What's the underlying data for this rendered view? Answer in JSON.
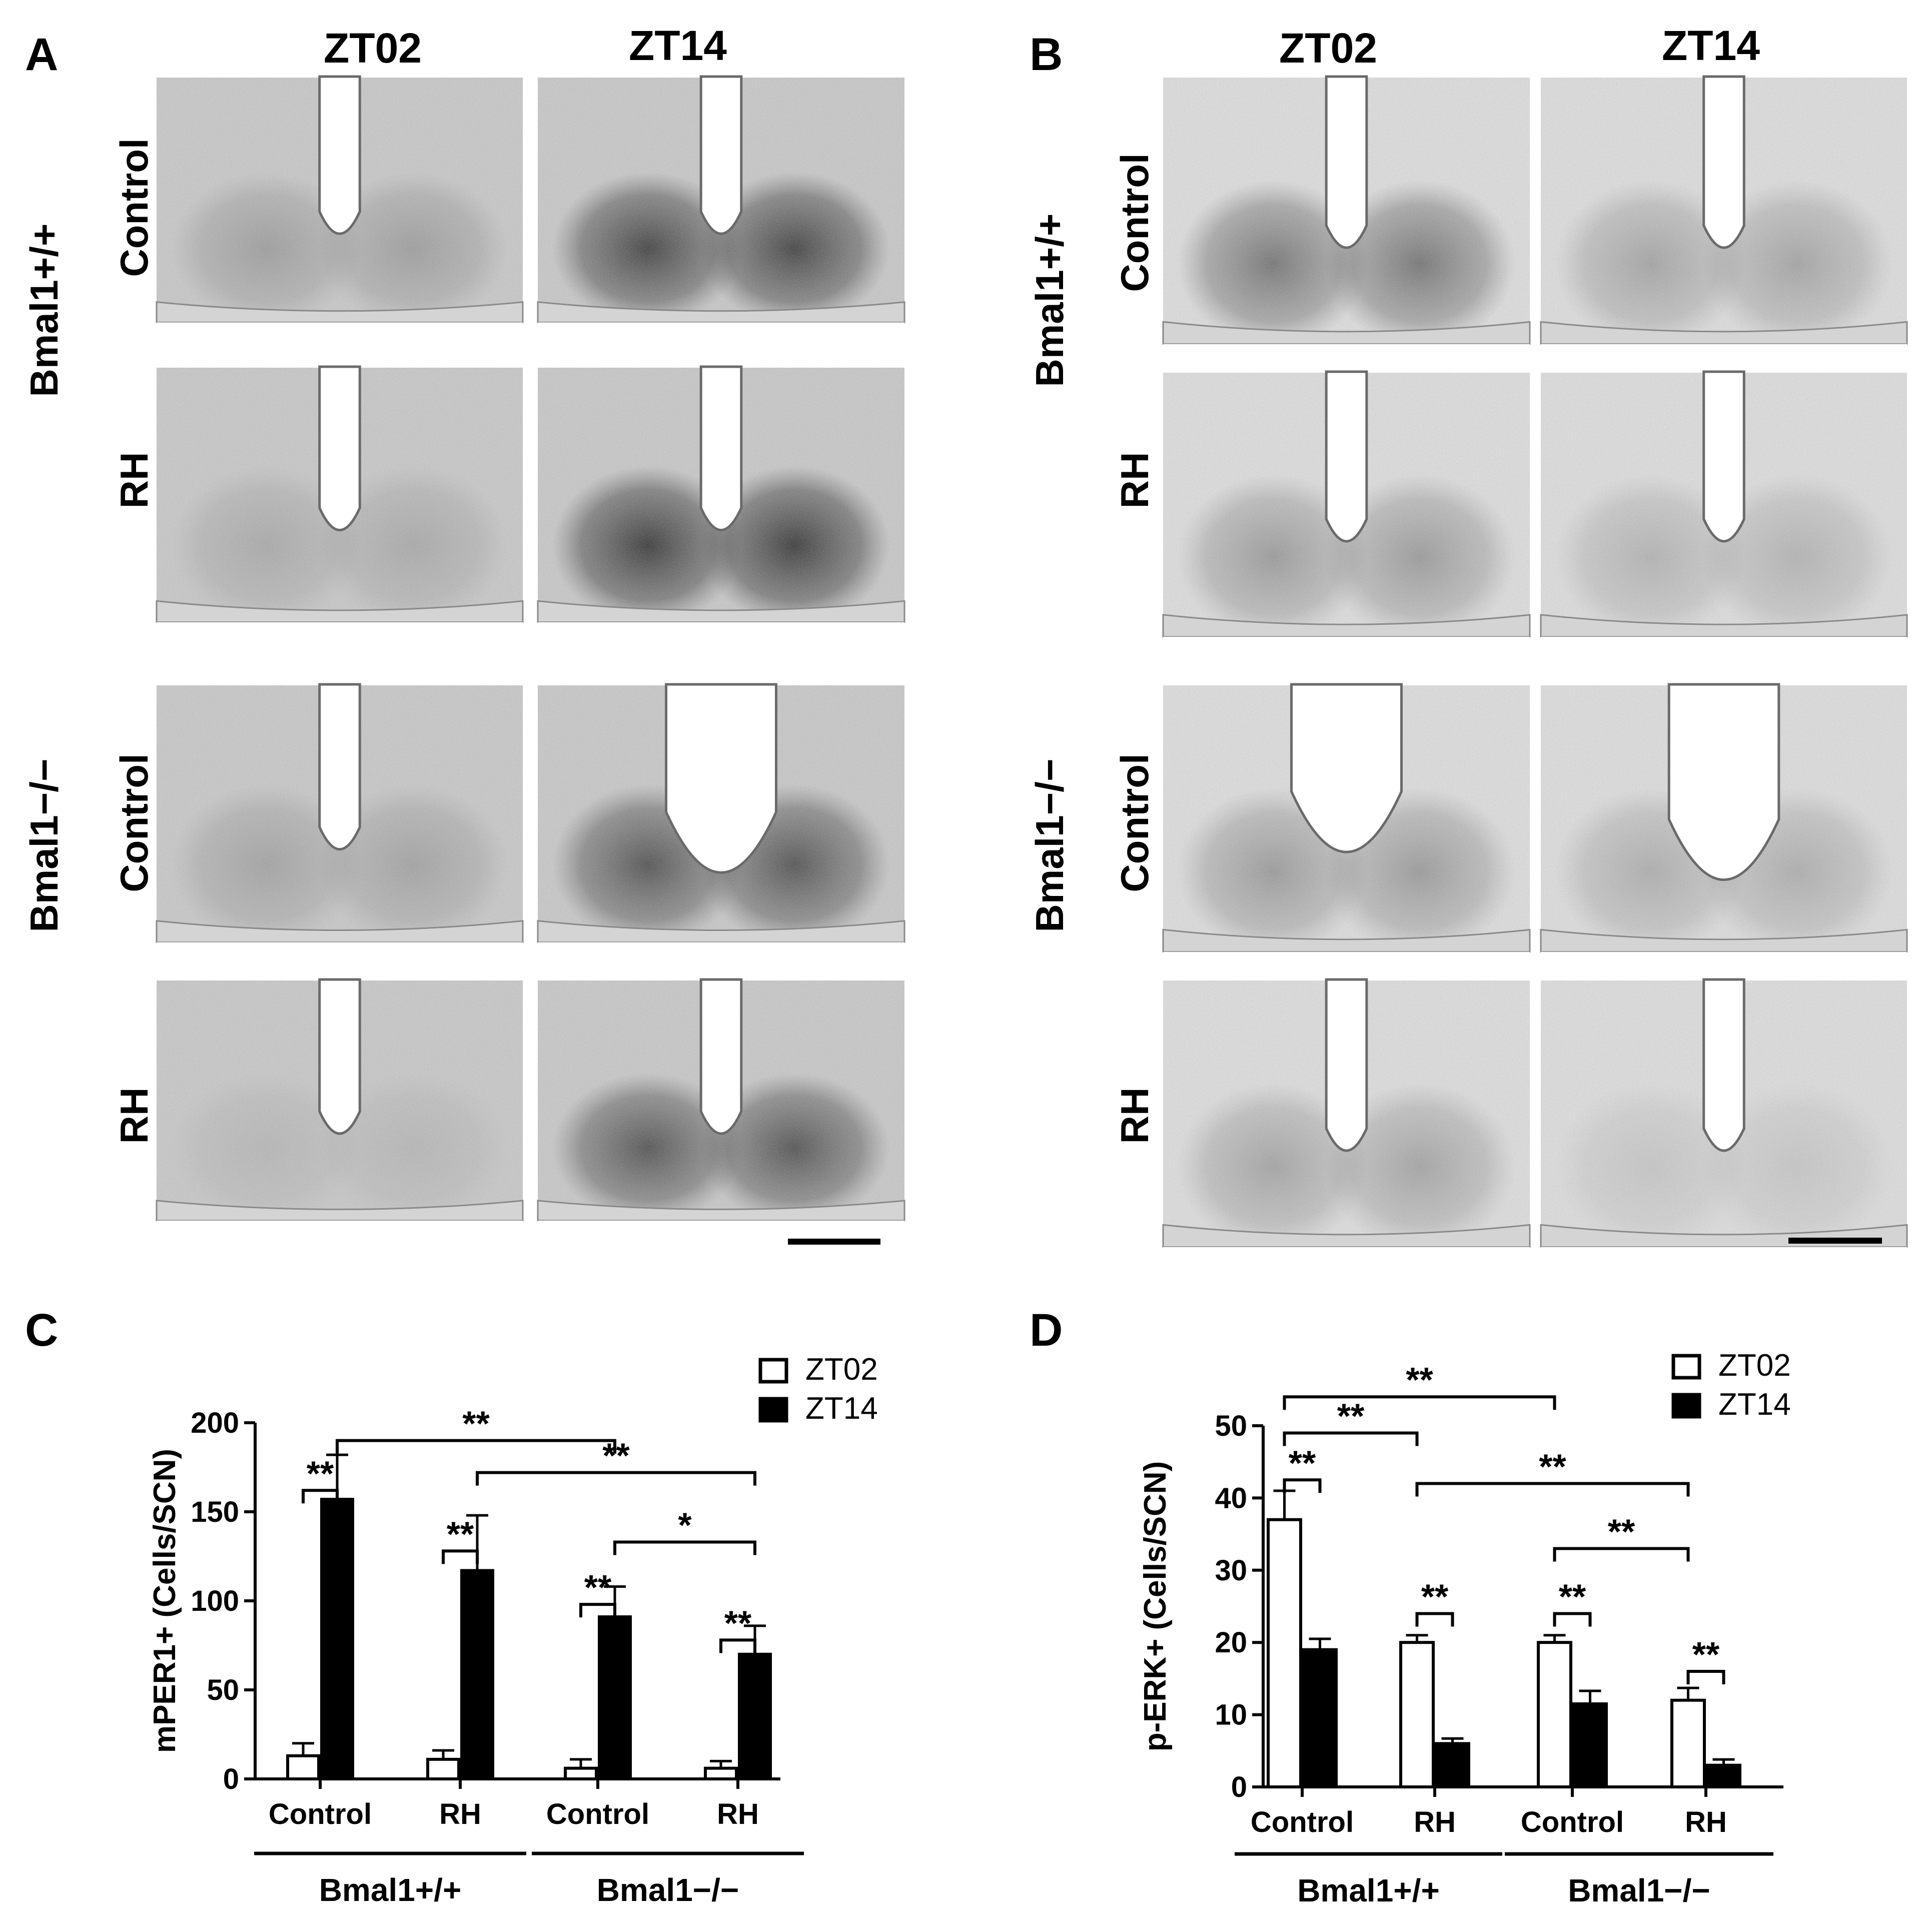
{
  "panels": {
    "A": {
      "letter": "A",
      "col_titles": [
        "ZT02",
        "ZT14"
      ],
      "genotypes": [
        "Bmal1+/+",
        "Bmal1−/−"
      ],
      "rows": [
        "Control",
        "RH",
        "Control",
        "RH"
      ],
      "stain": "mPER1",
      "stain_intensity": [
        [
          0.25,
          0.8
        ],
        [
          0.18,
          0.85
        ],
        [
          0.22,
          0.7
        ],
        [
          0.1,
          0.7
        ]
      ]
    },
    "B": {
      "letter": "B",
      "col_titles": [
        "ZT02",
        "ZT14"
      ],
      "genotypes": [
        "Bmal1+/+",
        "Bmal1−/−"
      ],
      "rows": [
        "Control",
        "RH",
        "Control",
        "RH"
      ],
      "stain": "p-ERK",
      "stain_intensity": [
        [
          0.55,
          0.3
        ],
        [
          0.35,
          0.22
        ],
        [
          0.35,
          0.25
        ],
        [
          0.3,
          0.12
        ]
      ]
    }
  },
  "chart_data": [
    {
      "panel": "C",
      "type": "bar",
      "ylabel": "mPER1+ (Cells/SCN)",
      "ylim": [
        0,
        200
      ],
      "yticks": [
        0,
        50,
        100,
        150,
        200
      ],
      "categories": [
        "Control",
        "RH",
        "Control",
        "RH"
      ],
      "groups": [
        {
          "label": "Bmal1+/+",
          "categories": [
            0,
            1
          ]
        },
        {
          "label": "Bmal1−/−",
          "categories": [
            2,
            3
          ]
        }
      ],
      "series": [
        {
          "name": "ZT02",
          "fill": "#ffffff",
          "values": [
            13,
            11,
            6,
            6
          ],
          "errors": [
            7,
            5,
            5,
            4
          ]
        },
        {
          "name": "ZT14",
          "fill": "#000000",
          "values": [
            157,
            117,
            91,
            70
          ],
          "errors": [
            25,
            31,
            17,
            16
          ]
        }
      ],
      "legend": "top-right",
      "significance": [
        {
          "label": "**",
          "from": [
            0,
            0
          ],
          "to": [
            0,
            1
          ],
          "y": 162
        },
        {
          "label": "**",
          "from": [
            1,
            0
          ],
          "to": [
            1,
            1
          ],
          "y": 128
        },
        {
          "label": "**",
          "from": [
            2,
            0
          ],
          "to": [
            2,
            1
          ],
          "y": 98
        },
        {
          "label": "**",
          "from": [
            3,
            0
          ],
          "to": [
            3,
            1
          ],
          "y": 78
        },
        {
          "label": "**",
          "from": [
            0,
            1
          ],
          "to": [
            2,
            1
          ],
          "y": 190
        },
        {
          "label": "**",
          "from": [
            1,
            1
          ],
          "to": [
            3,
            1
          ],
          "y": 172
        },
        {
          "label": "*",
          "from": [
            2,
            1
          ],
          "to": [
            3,
            1
          ],
          "y": 133
        }
      ]
    },
    {
      "panel": "D",
      "type": "bar",
      "ylabel": "p-ERK+ (Cells/SCN)",
      "ylim": [
        0,
        50
      ],
      "yticks": [
        0,
        10,
        20,
        30,
        40,
        50
      ],
      "categories": [
        "Control",
        "RH",
        "Control",
        "RH"
      ],
      "groups": [
        {
          "label": "Bmal1+/+",
          "categories": [
            0,
            1
          ]
        },
        {
          "label": "Bmal1−/−",
          "categories": [
            2,
            3
          ]
        }
      ],
      "series": [
        {
          "name": "ZT02",
          "fill": "#ffffff",
          "values": [
            37,
            20,
            20,
            12
          ],
          "errors": [
            4,
            1,
            1,
            1.7
          ]
        },
        {
          "name": "ZT14",
          "fill": "#000000",
          "values": [
            19,
            6,
            11.5,
            3
          ],
          "errors": [
            1.5,
            0.7,
            1.8,
            0.8
          ]
        }
      ],
      "legend": "top-right",
      "significance": [
        {
          "label": "**",
          "from": [
            0,
            0
          ],
          "to": [
            0,
            1
          ],
          "y": 42.5
        },
        {
          "label": "**",
          "from": [
            1,
            0
          ],
          "to": [
            1,
            1
          ],
          "y": 24
        },
        {
          "label": "**",
          "from": [
            2,
            0
          ],
          "to": [
            2,
            1
          ],
          "y": 24
        },
        {
          "label": "**",
          "from": [
            3,
            0
          ],
          "to": [
            3,
            1
          ],
          "y": 16
        },
        {
          "label": "**",
          "from": [
            0,
            0
          ],
          "to": [
            1,
            0
          ],
          "y": 49
        },
        {
          "label": "**",
          "from": [
            0,
            0
          ],
          "to": [
            2,
            0
          ],
          "y": 54
        },
        {
          "label": "**",
          "from": [
            1,
            0
          ],
          "to": [
            3,
            0
          ],
          "y": 42
        },
        {
          "label": "**",
          "from": [
            2,
            0
          ],
          "to": [
            3,
            0
          ],
          "y": 33
        }
      ]
    }
  ]
}
